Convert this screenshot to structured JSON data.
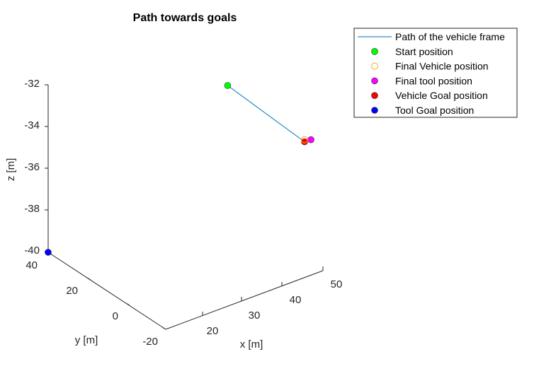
{
  "chart_data": {
    "type": "scatter",
    "title": "Path towards goals",
    "xlabel": "x [m]",
    "ylabel": "y [m]",
    "zlabel": "z [m]",
    "x_ticks": [
      "20",
      "30",
      "40",
      "50"
    ],
    "y_ticks": [
      "-20",
      "0",
      "20",
      "40"
    ],
    "z_ticks": [
      "-32",
      "-34",
      "-36",
      "-38",
      "-40"
    ],
    "legend_position": "top-right",
    "series": [
      {
        "name": "Path of the vehicle frame",
        "kind": "line",
        "color": "#0072BD",
        "points": [
          {
            "x": 38,
            "y": 40,
            "z": -32
          },
          {
            "x": 50,
            "y": 40,
            "z": -34.7
          }
        ]
      },
      {
        "name": "Start position",
        "kind": "marker",
        "color": "#00FF00",
        "filled": true,
        "points": [
          {
            "x": 38,
            "y": 40,
            "z": -32
          }
        ]
      },
      {
        "name": "Final Vehicle position",
        "kind": "marker",
        "color": "#EDB120",
        "filled": false,
        "points": [
          {
            "x": 50,
            "y": 40,
            "z": -34.6
          }
        ]
      },
      {
        "name": "Final tool position",
        "kind": "marker",
        "color": "#FF00FF",
        "filled": true,
        "points": [
          {
            "x": 51,
            "y": 40,
            "z": -34.6
          }
        ]
      },
      {
        "name": "Vehicle Goal position",
        "kind": "marker",
        "color": "#FF0000",
        "filled": true,
        "points": [
          {
            "x": 50,
            "y": 40,
            "z": -34.7
          }
        ]
      },
      {
        "name": "Tool Goal position",
        "kind": "marker",
        "color": "#0000FF",
        "filled": true,
        "points": [
          {
            "x": 10,
            "y": 40,
            "z": -40
          }
        ]
      }
    ]
  }
}
